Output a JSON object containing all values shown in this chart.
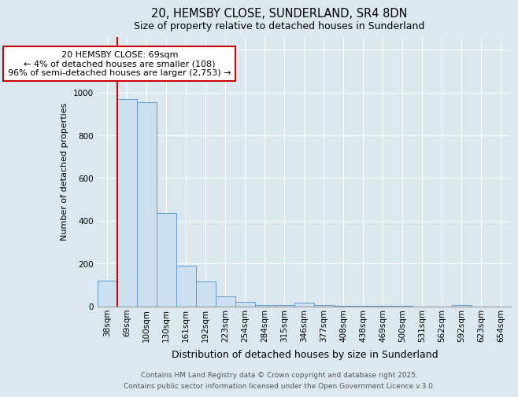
{
  "title_line1": "20, HEMSBY CLOSE, SUNDERLAND, SR4 8DN",
  "title_line2": "Size of property relative to detached houses in Sunderland",
  "xlabel": "Distribution of detached houses by size in Sunderland",
  "ylabel": "Number of detached properties",
  "categories": [
    "38sqm",
    "69sqm",
    "100sqm",
    "130sqm",
    "161sqm",
    "192sqm",
    "223sqm",
    "254sqm",
    "284sqm",
    "315sqm",
    "346sqm",
    "377sqm",
    "408sqm",
    "438sqm",
    "469sqm",
    "500sqm",
    "531sqm",
    "562sqm",
    "592sqm",
    "623sqm",
    "654sqm"
  ],
  "values": [
    120,
    970,
    955,
    435,
    190,
    115,
    45,
    20,
    5,
    5,
    15,
    5,
    2,
    1,
    1,
    1,
    0,
    0,
    5,
    0,
    0
  ],
  "bar_color": "#cce0f0",
  "bar_edge_color": "#6699cc",
  "red_line_x": 0.5,
  "annotation_title": "20 HEMSBY CLOSE: 69sqm",
  "annotation_line2": "← 4% of detached houses are smaller (108)",
  "annotation_line3": "96% of semi-detached houses are larger (2,753) →",
  "annotation_box_facecolor": "#ffffff",
  "annotation_box_edgecolor": "#cc0000",
  "red_line_color": "#cc0000",
  "ylim": [
    0,
    1260
  ],
  "yticks": [
    0,
    200,
    400,
    600,
    800,
    1000,
    1200
  ],
  "background_color": "#dce8f0",
  "plot_background": "#dce8f0",
  "footer_line1": "Contains HM Land Registry data © Crown copyright and database right 2025.",
  "footer_line2": "Contains public sector information licensed under the Open Government Licence v.3.0.",
  "title1_fontsize": 10.5,
  "title2_fontsize": 9,
  "ylabel_fontsize": 8,
  "xlabel_fontsize": 9,
  "tick_fontsize": 7.5,
  "footer_fontsize": 6.5,
  "ann_fontsize": 8
}
